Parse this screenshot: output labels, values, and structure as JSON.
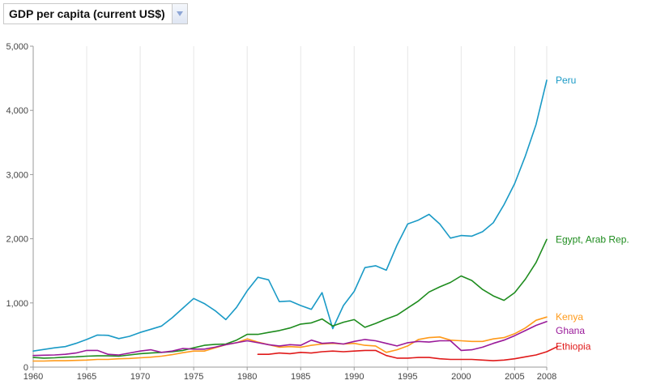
{
  "indicator": {
    "label": "GDP per capita (current US$)",
    "dropdown_icon": "chevron-down-icon",
    "dropdown_color": "#8ea6d6"
  },
  "chart_data": {
    "type": "line",
    "title": "",
    "xlabel": "",
    "ylabel": "",
    "xlim": [
      1960,
      2008
    ],
    "ylim": [
      0,
      5000
    ],
    "x_ticks": [
      1960,
      1965,
      1970,
      1975,
      1980,
      1985,
      1990,
      1995,
      2000,
      2005,
      2008
    ],
    "y_ticks": [
      0,
      1000,
      2000,
      3000,
      4000,
      5000
    ],
    "y_tick_labels": [
      "0",
      "1,000",
      "2,000",
      "3,000",
      "4,000",
      "5,000"
    ],
    "grid": "vertical",
    "legend": "end-of-line labels",
    "series": [
      {
        "name": "Peru",
        "color": "#1a9ac6",
        "start": 1960,
        "values": [
          250,
          275,
          300,
          320,
          370,
          430,
          500,
          495,
          445,
          480,
          540,
          590,
          640,
          770,
          920,
          1070,
          990,
          880,
          740,
          930,
          1190,
          1400,
          1360,
          1020,
          1030,
          960,
          900,
          1160,
          600,
          960,
          1180,
          1550,
          1580,
          1510,
          1900,
          2230,
          2290,
          2380,
          2230,
          2010,
          2050,
          2040,
          2110,
          2250,
          2530,
          2860,
          3290,
          3780,
          4470
        ]
      },
      {
        "name": "Egypt, Arab Rep.",
        "color": "#1e8c1e",
        "start": 1960,
        "values": [
          150,
          140,
          145,
          155,
          160,
          170,
          175,
          175,
          170,
          190,
          210,
          220,
          230,
          240,
          260,
          300,
          340,
          355,
          360,
          420,
          510,
          510,
          540,
          570,
          610,
          670,
          690,
          750,
          640,
          700,
          740,
          620,
          680,
          750,
          810,
          920,
          1030,
          1170,
          1250,
          1320,
          1420,
          1350,
          1210,
          1110,
          1040,
          1160,
          1370,
          1630,
          1990
        ]
      },
      {
        "name": "Kenya",
        "color": "#ff9a1a",
        "start": 1960,
        "values": [
          95,
          95,
          100,
          100,
          105,
          110,
          120,
          120,
          130,
          135,
          145,
          155,
          170,
          195,
          225,
          250,
          250,
          300,
          350,
          380,
          440,
          390,
          350,
          310,
          320,
          310,
          340,
          360,
          370,
          360,
          370,
          340,
          330,
          230,
          270,
          330,
          430,
          460,
          470,
          420,
          410,
          400,
          400,
          440,
          460,
          520,
          610,
          730,
          780
        ]
      },
      {
        "name": "Ghana",
        "color": "#9a1a9a",
        "start": 1960,
        "values": [
          180,
          185,
          190,
          200,
          220,
          260,
          260,
          200,
          190,
          220,
          250,
          270,
          230,
          250,
          290,
          280,
          280,
          310,
          350,
          380,
          410,
          380,
          350,
          330,
          350,
          340,
          420,
          370,
          380,
          360,
          400,
          430,
          410,
          370,
          330,
          380,
          400,
          390,
          410,
          410,
          260,
          270,
          310,
          370,
          420,
          490,
          570,
          650,
          710
        ]
      },
      {
        "name": "Ethiopia",
        "color": "#e01a1a",
        "start": 1981,
        "values": [
          200,
          200,
          220,
          210,
          230,
          220,
          240,
          250,
          240,
          250,
          260,
          260,
          180,
          140,
          140,
          150,
          150,
          130,
          120,
          120,
          120,
          110,
          100,
          110,
          130,
          160,
          190,
          240,
          320
        ]
      }
    ]
  }
}
